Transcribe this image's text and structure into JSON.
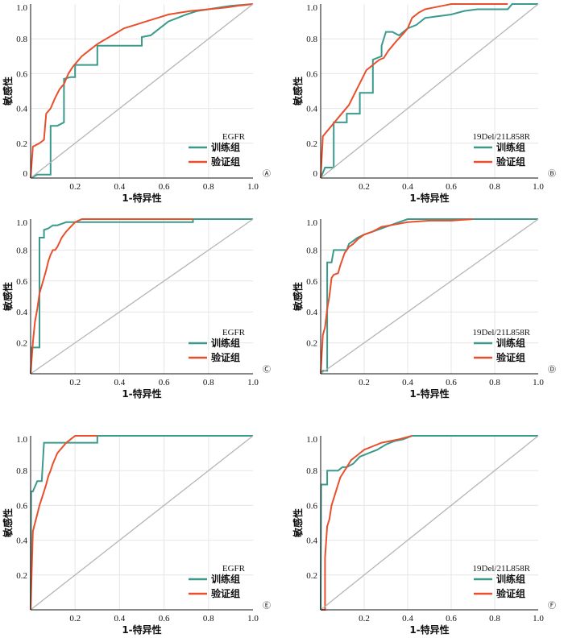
{
  "colors": {
    "train": "#3a9a8c",
    "valid": "#e8502d",
    "diagonal": "#b4b4b4",
    "grid": "#e6e6e6"
  },
  "chart_data": [
    {
      "type": "line",
      "panel": "Ⓐ",
      "legend_title": "EGFR",
      "xlabel": "1-特异性",
      "ylabel": "敏感性",
      "xlim": [
        0,
        1
      ],
      "ylim": [
        0,
        1
      ],
      "xticks": [
        "0.2",
        "0.4",
        "0.6",
        "0.8",
        "1.0"
      ],
      "yticks": [
        "0",
        "0.2",
        "0.4",
        "0.6",
        "0.8",
        "1.0"
      ],
      "grid": true,
      "legend_position": "bottom-right",
      "series": [
        {
          "name": "训练组",
          "key": "train",
          "x": [
            0,
            0.03,
            0.06,
            0.09,
            0.09,
            0.12,
            0.15,
            0.15,
            0.18,
            0.2,
            0.2,
            0.3,
            0.3,
            0.38,
            0.46,
            0.5,
            0.5,
            0.54,
            0.58,
            0.6,
            0.62,
            0.66,
            0.7,
            0.75,
            0.8,
            0.85,
            0.9,
            1.0
          ],
          "y": [
            0,
            0.02,
            0.02,
            0.02,
            0.3,
            0.3,
            0.32,
            0.57,
            0.58,
            0.58,
            0.65,
            0.65,
            0.76,
            0.76,
            0.76,
            0.76,
            0.81,
            0.82,
            0.86,
            0.88,
            0.9,
            0.92,
            0.94,
            0.96,
            0.97,
            0.98,
            0.99,
            1.0
          ]
        },
        {
          "name": "验证组",
          "key": "valid",
          "x": [
            0,
            0.01,
            0.04,
            0.06,
            0.07,
            0.09,
            0.11,
            0.13,
            0.15,
            0.17,
            0.19,
            0.21,
            0.23,
            0.26,
            0.3,
            0.34,
            0.38,
            0.42,
            0.47,
            0.52,
            0.57,
            0.62,
            0.67,
            0.72,
            0.8,
            0.88,
            0.93,
            1.0
          ],
          "y": [
            0,
            0.18,
            0.2,
            0.22,
            0.37,
            0.4,
            0.46,
            0.51,
            0.54,
            0.6,
            0.64,
            0.67,
            0.7,
            0.73,
            0.77,
            0.8,
            0.83,
            0.86,
            0.88,
            0.9,
            0.92,
            0.94,
            0.95,
            0.96,
            0.97,
            0.98,
            0.99,
            1.0
          ]
        },
        {
          "name": "",
          "key": "diagonal",
          "x": [
            0,
            1
          ],
          "y": [
            0,
            1
          ]
        }
      ]
    },
    {
      "type": "line",
      "panel": "Ⓑ",
      "legend_title": "19Del/21L858R",
      "xlabel": "1-特异性",
      "ylabel": "敏感性",
      "xlim": [
        0,
        1
      ],
      "ylim": [
        0,
        1
      ],
      "xticks": [
        "0.2",
        "0.4",
        "0.6",
        "0.8",
        "1.0"
      ],
      "yticks": [
        "0",
        "0.2",
        "0.4",
        "0.6",
        "0.8",
        "1.0"
      ],
      "grid": true,
      "legend_position": "bottom-right",
      "series": [
        {
          "name": "训练组",
          "key": "train",
          "x": [
            0,
            0.02,
            0.05,
            0.06,
            0.06,
            0.12,
            0.12,
            0.18,
            0.18,
            0.24,
            0.24,
            0.28,
            0.28,
            0.3,
            0.33,
            0.36,
            0.4,
            0.44,
            0.48,
            0.54,
            0.6,
            0.66,
            0.72,
            0.8,
            0.86,
            0.88,
            1.0
          ],
          "y": [
            0,
            0.06,
            0.06,
            0.06,
            0.32,
            0.32,
            0.37,
            0.37,
            0.49,
            0.49,
            0.68,
            0.7,
            0.76,
            0.84,
            0.84,
            0.82,
            0.86,
            0.88,
            0.92,
            0.93,
            0.94,
            0.96,
            0.97,
            0.97,
            0.97,
            1.0,
            1.0
          ]
        },
        {
          "name": "验证组",
          "key": "valid",
          "x": [
            0,
            0.01,
            0.03,
            0.05,
            0.07,
            0.09,
            0.11,
            0.13,
            0.15,
            0.17,
            0.19,
            0.21,
            0.23,
            0.25,
            0.27,
            0.29,
            0.31,
            0.33,
            0.35,
            0.38,
            0.4,
            0.42,
            0.45,
            0.48,
            0.52,
            0.56,
            0.6,
            0.7,
            0.86
          ],
          "y": [
            0,
            0.24,
            0.27,
            0.3,
            0.33,
            0.36,
            0.39,
            0.42,
            0.47,
            0.52,
            0.57,
            0.62,
            0.64,
            0.66,
            0.68,
            0.69,
            0.73,
            0.76,
            0.79,
            0.83,
            0.86,
            0.92,
            0.95,
            0.97,
            0.98,
            0.99,
            1.0,
            1.0,
            1.0
          ]
        },
        {
          "name": "",
          "key": "diagonal",
          "x": [
            0,
            1
          ],
          "y": [
            0,
            1
          ]
        }
      ]
    },
    {
      "type": "line",
      "panel": "Ⓒ",
      "legend_title": "EGFR",
      "xlabel": "1-特异性",
      "ylabel": "敏感性",
      "xlim": [
        0,
        1
      ],
      "ylim": [
        0,
        1
      ],
      "xticks": [
        "0.2",
        "0.4",
        "0.6",
        "0.8",
        "1.0"
      ],
      "yticks": [
        "0.2",
        "0.4",
        "0.6",
        "0.8",
        "1.0"
      ],
      "grid": true,
      "legend_position": "bottom-right",
      "series": [
        {
          "name": "训练组",
          "key": "train",
          "x": [
            0,
            0.005,
            0.01,
            0.03,
            0.04,
            0.04,
            0.06,
            0.06,
            0.08,
            0.1,
            0.12,
            0.14,
            0.16,
            0.2,
            0.3,
            0.5,
            0.73,
            0.73,
            1.0
          ],
          "y": [
            0,
            0.17,
            0.17,
            0.17,
            0.17,
            0.88,
            0.88,
            0.93,
            0.94,
            0.96,
            0.96,
            0.97,
            0.98,
            0.98,
            0.98,
            0.98,
            0.98,
            1.0,
            1.0
          ]
        },
        {
          "name": "验证组",
          "key": "valid",
          "x": [
            0,
            0.01,
            0.015,
            0.02,
            0.03,
            0.04,
            0.05,
            0.06,
            0.07,
            0.08,
            0.09,
            0.1,
            0.11,
            0.12,
            0.13,
            0.14,
            0.16,
            0.18,
            0.2,
            0.23,
            0.5,
            0.73
          ],
          "y": [
            0,
            0.2,
            0.27,
            0.34,
            0.42,
            0.52,
            0.57,
            0.62,
            0.67,
            0.73,
            0.77,
            0.8,
            0.8,
            0.82,
            0.85,
            0.88,
            0.92,
            0.95,
            0.98,
            1.0,
            1.0,
            1.0
          ]
        },
        {
          "name": "",
          "key": "diagonal",
          "x": [
            0,
            1
          ],
          "y": [
            0,
            1
          ]
        }
      ]
    },
    {
      "type": "line",
      "panel": "Ⓓ",
      "legend_title": "19Del/21L858R",
      "xlabel": "1-特异性",
      "ylabel": "敏感性",
      "xlim": [
        0,
        1
      ],
      "ylim": [
        0,
        1
      ],
      "xticks": [
        "0.2",
        "0.4",
        "0.6",
        "0.8",
        "1.0"
      ],
      "yticks": [
        "0.2",
        "0.4",
        "0.6",
        "0.8",
        "1.0"
      ],
      "grid": true,
      "legend_position": "bottom-right",
      "series": [
        {
          "name": "训练组",
          "key": "train",
          "x": [
            0,
            0.01,
            0.02,
            0.03,
            0.03,
            0.05,
            0.06,
            0.07,
            0.12,
            0.13,
            0.14,
            0.15,
            0.17,
            0.2,
            0.24,
            0.28,
            0.32,
            0.36,
            0.4,
            1.0
          ],
          "y": [
            0,
            0.02,
            0.02,
            0.02,
            0.72,
            0.72,
            0.8,
            0.8,
            0.8,
            0.84,
            0.85,
            0.86,
            0.88,
            0.9,
            0.92,
            0.94,
            0.96,
            0.98,
            1.0,
            1.0
          ]
        },
        {
          "name": "验证组",
          "key": "valid",
          "x": [
            0,
            0.01,
            0.02,
            0.03,
            0.04,
            0.05,
            0.06,
            0.08,
            0.09,
            0.1,
            0.11,
            0.12,
            0.13,
            0.15,
            0.17,
            0.2,
            0.24,
            0.28,
            0.32,
            0.4,
            0.5,
            0.6,
            0.7
          ],
          "y": [
            0,
            0.25,
            0.3,
            0.42,
            0.5,
            0.62,
            0.64,
            0.65,
            0.7,
            0.74,
            0.78,
            0.8,
            0.82,
            0.84,
            0.87,
            0.9,
            0.92,
            0.95,
            0.96,
            0.98,
            0.99,
            0.99,
            1.0
          ]
        },
        {
          "name": "",
          "key": "diagonal",
          "x": [
            0,
            1
          ],
          "y": [
            0,
            1
          ]
        }
      ]
    },
    {
      "type": "line",
      "panel": "Ⓔ",
      "legend_title": "EGFR",
      "xlabel": "1-特异性",
      "ylabel": "敏感性",
      "xlim": [
        0,
        1
      ],
      "ylim": [
        0,
        1
      ],
      "xticks": [
        "0.2",
        "0.4",
        "0.6",
        "0.8",
        "1.0"
      ],
      "yticks": [
        "0.2",
        "0.4",
        "0.6",
        "0.8",
        "1.0"
      ],
      "grid": true,
      "legend_position": "bottom-right",
      "series": [
        {
          "name": "训练组",
          "key": "train",
          "x": [
            0,
            0.002,
            0.01,
            0.03,
            0.05,
            0.06,
            0.06,
            0.1,
            0.15,
            0.2,
            0.3,
            0.3,
            1.0
          ],
          "y": [
            0,
            0.68,
            0.68,
            0.74,
            0.74,
            0.96,
            0.96,
            0.96,
            0.96,
            0.96,
            0.96,
            1.0,
            1.0
          ]
        },
        {
          "name": "验证组",
          "key": "valid",
          "x": [
            0,
            0.01,
            0.02,
            0.03,
            0.04,
            0.05,
            0.06,
            0.07,
            0.08,
            0.09,
            0.1,
            0.11,
            0.12,
            0.14,
            0.16,
            0.18,
            0.2,
            0.3
          ],
          "y": [
            0,
            0.45,
            0.5,
            0.55,
            0.6,
            0.64,
            0.68,
            0.72,
            0.77,
            0.8,
            0.84,
            0.87,
            0.9,
            0.93,
            0.96,
            0.98,
            1.0,
            1.0
          ]
        },
        {
          "name": "",
          "key": "diagonal",
          "x": [
            0,
            1
          ],
          "y": [
            0,
            1
          ]
        }
      ]
    },
    {
      "type": "line",
      "panel": "Ⓕ",
      "legend_title": "19Del/21L858R",
      "xlabel": "1-特异性",
      "ylabel": "敏感性",
      "xlim": [
        0,
        1
      ],
      "ylim": [
        0,
        1
      ],
      "xticks": [
        "0.2",
        "0.4",
        "0.6",
        "0.8",
        "1.0"
      ],
      "yticks": [
        "0.2",
        "0.4",
        "0.6",
        "0.8",
        "1.0"
      ],
      "grid": true,
      "legend_position": "bottom-right",
      "series": [
        {
          "name": "训练组",
          "key": "train",
          "x": [
            0,
            0.002,
            0.03,
            0.03,
            0.06,
            0.08,
            0.1,
            0.12,
            0.15,
            0.18,
            0.22,
            0.26,
            0.3,
            0.34,
            0.38,
            0.42,
            1.0
          ],
          "y": [
            0,
            0.72,
            0.72,
            0.8,
            0.8,
            0.8,
            0.82,
            0.82,
            0.84,
            0.88,
            0.9,
            0.92,
            0.95,
            0.97,
            0.98,
            1.0,
            1.0
          ]
        },
        {
          "name": "验证组",
          "key": "valid",
          "x": [
            0,
            0.01,
            0.02,
            0.02,
            0.03,
            0.04,
            0.05,
            0.06,
            0.07,
            0.08,
            0.09,
            0.1,
            0.12,
            0.14,
            0.16,
            0.18,
            0.2,
            0.24,
            0.28,
            0.32,
            0.36,
            0.42
          ],
          "y": [
            0,
            0.0,
            0.0,
            0.3,
            0.48,
            0.52,
            0.6,
            0.64,
            0.68,
            0.72,
            0.76,
            0.78,
            0.82,
            0.86,
            0.88,
            0.9,
            0.92,
            0.94,
            0.96,
            0.97,
            0.98,
            1.0
          ]
        },
        {
          "name": "",
          "key": "diagonal",
          "x": [
            0,
            1
          ],
          "y": [
            0,
            1
          ]
        }
      ]
    }
  ]
}
